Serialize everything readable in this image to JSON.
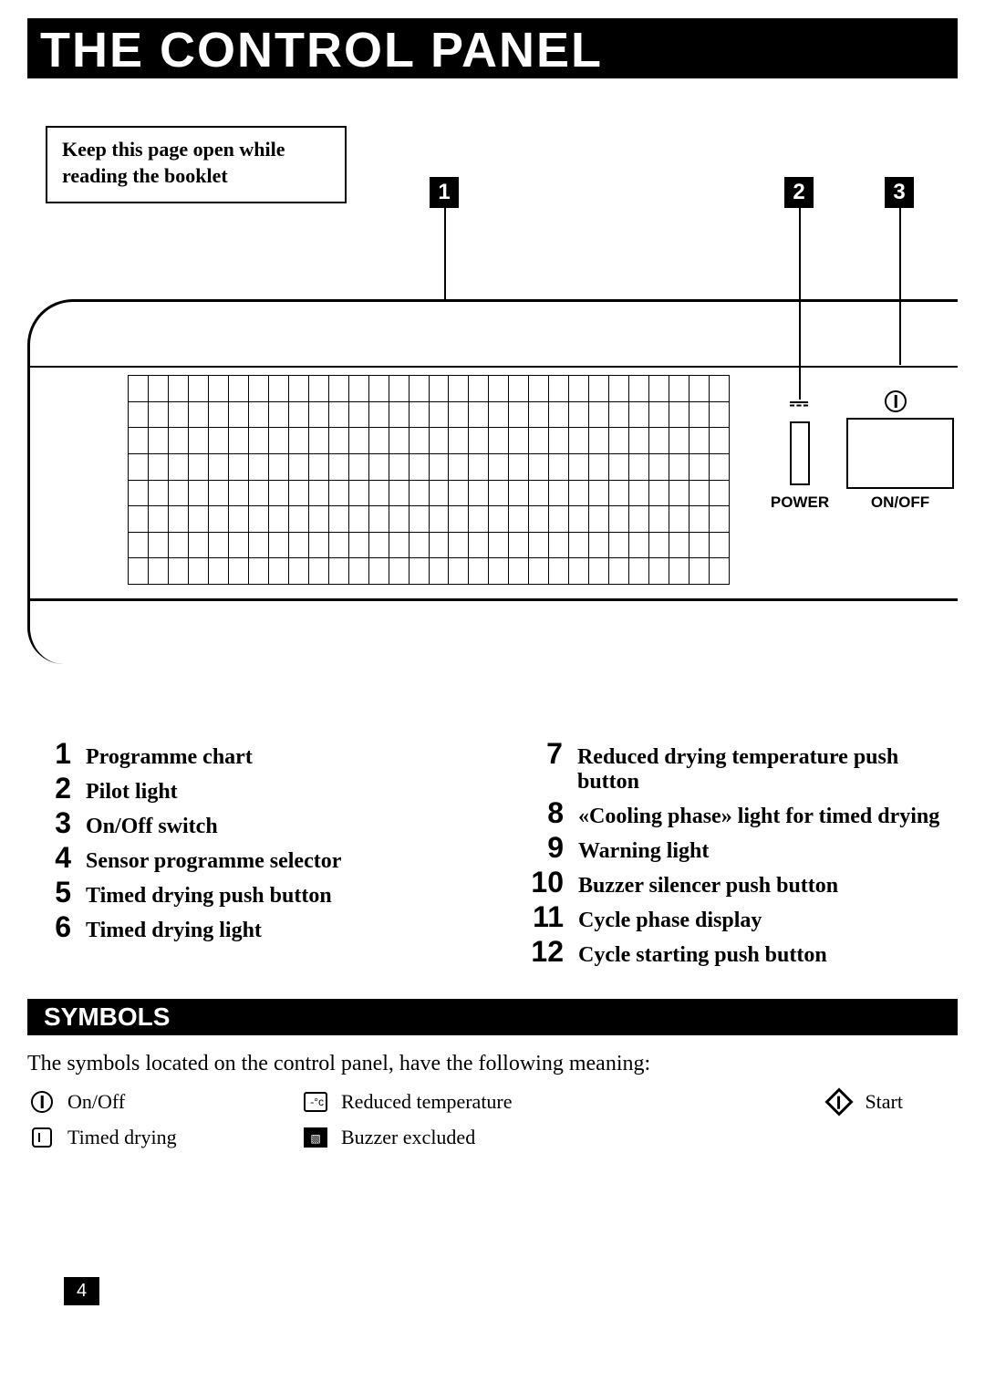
{
  "title": "THE CONTROL PANEL",
  "keep_open_note": "Keep this page open while reading the booklet",
  "callouts": {
    "n1": "1",
    "n2": "2",
    "n3": "3"
  },
  "panel": {
    "power_label": "POWER",
    "onoff_label": "ON/OFF",
    "socket_glyph": "⏻",
    "onoff_glyph": "⏻"
  },
  "programme_grid": {
    "cols": 30,
    "rows": 8
  },
  "legend_left": [
    {
      "n": "1",
      "t": "Programme chart"
    },
    {
      "n": "2",
      "t": "Pilot light"
    },
    {
      "n": "3",
      "t": "On/Off switch"
    },
    {
      "n": "4",
      "t": "Sensor programme selector"
    },
    {
      "n": "5",
      "t": "Timed drying push button"
    },
    {
      "n": "6",
      "t": "Timed drying light"
    }
  ],
  "legend_right": [
    {
      "n": "7",
      "t": "Reduced drying temperature push button"
    },
    {
      "n": "8",
      "t": "«Cooling phase» light for timed drying"
    },
    {
      "n": "9",
      "t": "Warning light"
    },
    {
      "n": "10",
      "t": "Buzzer silencer push button"
    },
    {
      "n": "11",
      "t": "Cycle phase display"
    },
    {
      "n": "12",
      "t": "Cycle starting push button"
    }
  ],
  "symbols_heading": "SYMBOLS",
  "symbols_intro": "The symbols located on the control panel, have the following meaning:",
  "symbols": {
    "onoff": "On/Off",
    "timed": "Timed drying",
    "reduced": "Reduced temperature",
    "buzzer": "Buzzer excluded",
    "start": "Start"
  },
  "temp_glyph_text": "-°c",
  "buzzer_glyph_text": "▧",
  "page_number": "4",
  "colors": {
    "bg": "#ffffff",
    "fg": "#000000"
  }
}
